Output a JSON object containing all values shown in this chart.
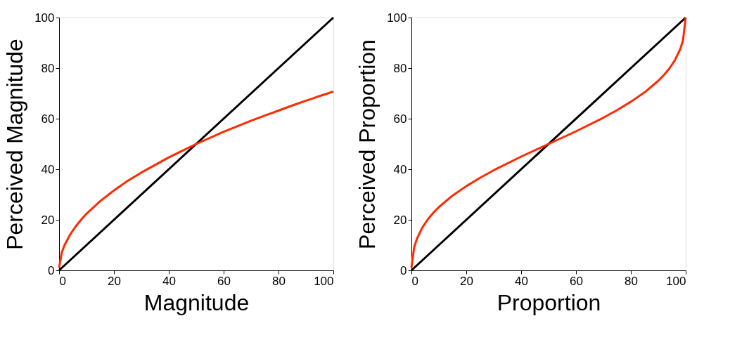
{
  "chart_data": [
    {
      "type": "line",
      "xlabel": "Magnitude",
      "ylabel": "Perceived Magnitude",
      "xlim": [
        0,
        100
      ],
      "ylim": [
        0,
        100
      ],
      "xticks": [
        0,
        20,
        40,
        60,
        80,
        100
      ],
      "yticks": [
        0,
        20,
        40,
        60,
        80,
        100
      ],
      "grid": false,
      "series": [
        {
          "color": "#000000",
          "x": [
            0,
            100
          ],
          "values": [
            0,
            100
          ]
        },
        {
          "color": "#ff2a00",
          "x": [
            0,
            1,
            2,
            4,
            6,
            8,
            10,
            15,
            20,
            25,
            30,
            40,
            50,
            60,
            70,
            75,
            80,
            85,
            90,
            92,
            94,
            96,
            98,
            99,
            100
          ],
          "values": [
            1,
            7.1,
            10,
            14.1,
            17.3,
            20,
            22.4,
            27.4,
            31.6,
            35.4,
            38.7,
            44.7,
            50,
            54.8,
            59.2,
            61.2,
            63.2,
            65.2,
            67.1,
            67.8,
            68.6,
            69.3,
            70,
            70.4,
            70.7
          ]
        }
      ]
    },
    {
      "type": "line",
      "xlabel": "Proportion",
      "ylabel": "Perceived Proportion",
      "xlim": [
        0,
        100
      ],
      "ylim": [
        0,
        100
      ],
      "xticks": [
        0,
        20,
        40,
        60,
        80,
        100
      ],
      "yticks": [
        0,
        20,
        40,
        60,
        80,
        100
      ],
      "grid": false,
      "series": [
        {
          "color": "#000000",
          "x": [
            0,
            100
          ],
          "values": [
            0,
            100
          ]
        },
        {
          "color": "#ff2a00",
          "x": [
            0,
            1,
            2,
            4,
            6,
            8,
            10,
            15,
            20,
            25,
            30,
            40,
            50,
            60,
            70,
            75,
            80,
            85,
            90,
            92,
            94,
            96,
            98,
            99,
            100
          ],
          "values": [
            1,
            9.1,
            12.5,
            17,
            20.2,
            22.8,
            25,
            29.6,
            33.3,
            36.6,
            39.6,
            45,
            50,
            55,
            60.4,
            63.4,
            66.7,
            70.4,
            75,
            77.2,
            79.8,
            83,
            87.5,
            90.9,
            100
          ]
        }
      ]
    }
  ]
}
